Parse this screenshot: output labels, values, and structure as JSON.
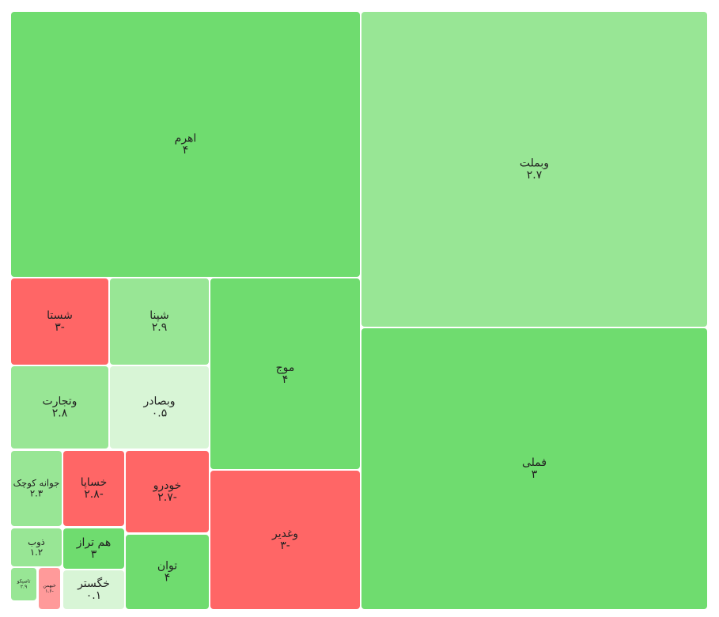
{
  "chart_data": {
    "type": "treemap",
    "categories": [
      "وبملت",
      "فملی",
      "اهرم",
      "موج",
      "وغدیر",
      "شستا",
      "شپنا",
      "وتجارت",
      "وبصادر",
      "خودرو",
      "توان",
      "خساپا",
      "جوانه کوچک",
      "ذوب",
      "هم تراز",
      "خگستر",
      "تاصیکو",
      "خبهمن"
    ],
    "values": [
      2.7,
      3,
      4,
      4,
      -3,
      -3,
      2.9,
      2.8,
      0.5,
      -2.7,
      4,
      -2.8,
      2.3,
      1.2,
      3,
      0.1,
      2.9,
      -1.6
    ],
    "value_labels": [
      "۲.۷",
      "۳",
      "۴",
      "۴",
      "۳-",
      "۳-",
      "۲.۹",
      "۲.۸",
      "۰.۵",
      "۲.۷-",
      "۴",
      "۲.۸-",
      "۲.۳",
      "۱.۲",
      "۳",
      "۰.۱",
      "۲.۹",
      "۱.۶-"
    ],
    "colors": [
      "#98e695",
      "#6fdc6f",
      "#6fdc6f",
      "#6fdc6f",
      "#ff6666",
      "#ff6666",
      "#98e695",
      "#98e695",
      "#d8f5d6",
      "#ff6666",
      "#6fdc6f",
      "#ff6666",
      "#98e695",
      "#98e695",
      "#6fdc6f",
      "#d8f5d6",
      "#98e695",
      "#ff9a9a"
    ]
  }
}
